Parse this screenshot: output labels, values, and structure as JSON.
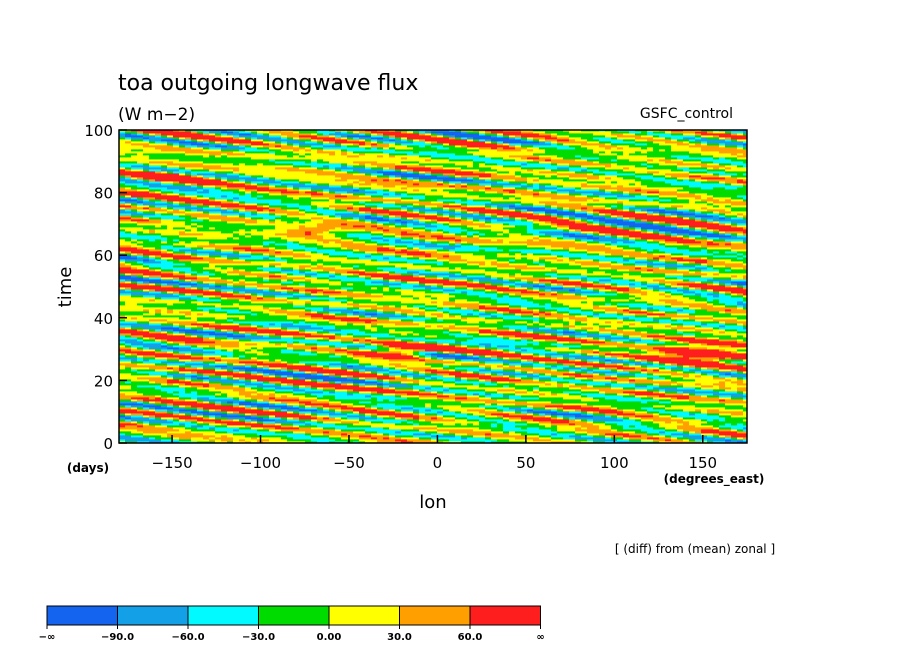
{
  "chart_data": {
    "type": "heatmap",
    "title": "toa outgoing longwave flux",
    "units": "(W m−2)",
    "run_label": "GSFC_control",
    "note": "[ (diff) from (mean) zonal ]",
    "xlabel": "lon",
    "x_units": "(degrees_east)",
    "ylabel": "time",
    "y_units": "(days)",
    "xlim": [
      -180,
      175
    ],
    "ylim": [
      0,
      100
    ],
    "x_ticks": [
      -150,
      -100,
      -50,
      0,
      50,
      100,
      150
    ],
    "x_tick_labels": [
      "−150",
      "−100",
      "−50",
      "0",
      "50",
      "100",
      "150"
    ],
    "y_ticks": [
      0,
      20,
      40,
      60,
      80,
      100
    ],
    "y_tick_labels": [
      "0",
      "20",
      "40",
      "60",
      "80",
      "100"
    ],
    "field_description": "time–longitude anomaly field, narrow streaks tilted downward toward east; large positive patches near lon −30..−10 day 28..31 and lon 120..175 day 25..32",
    "colorbar": {
      "levels": [
        -90,
        -60,
        -30,
        0,
        30,
        60
      ],
      "tick_labels": [
        "−∞",
        "−90.0",
        "−60.0",
        "−30.0",
        "0.00",
        "30.0",
        "60.0",
        "∞"
      ],
      "colors": [
        "#1464f0",
        "#14a0e6",
        "#00faff",
        "#00dc00",
        "#ffff00",
        "#ffa000",
        "#ff1e1e"
      ]
    }
  }
}
